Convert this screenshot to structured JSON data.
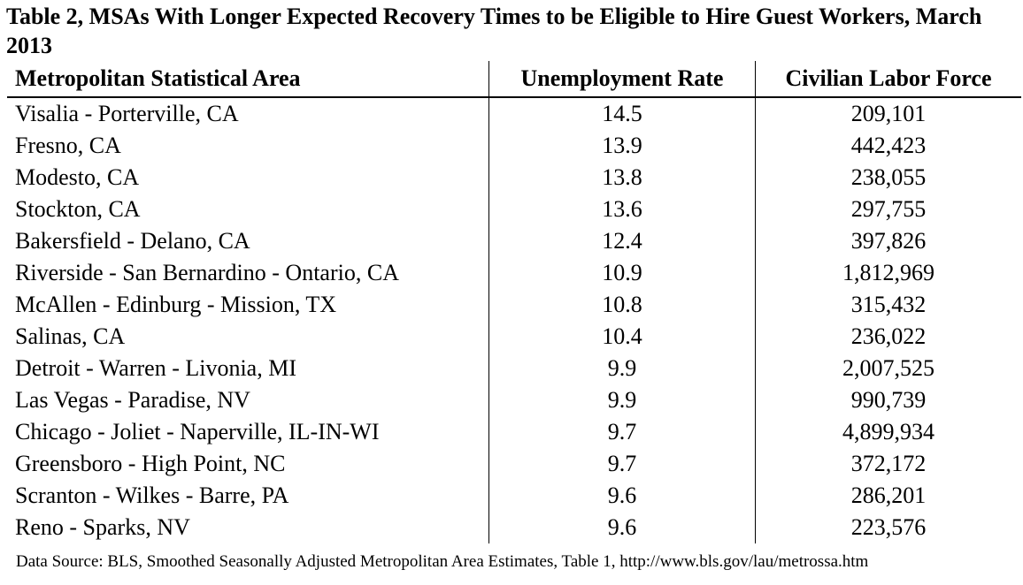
{
  "title": "Table 2, MSAs With Longer Expected Recovery Times to be Eligible to Hire Guest Workers, March 2013",
  "headers": {
    "area": "Metropolitan Statistical Area",
    "rate": "Unemployment Rate",
    "labor": "Civilian Labor Force"
  },
  "rows": [
    {
      "area": "Visalia - Porterville, CA",
      "rate": "14.5",
      "labor": "209,101"
    },
    {
      "area": "Fresno, CA",
      "rate": "13.9",
      "labor": "442,423"
    },
    {
      "area": "Modesto, CA",
      "rate": "13.8",
      "labor": "238,055"
    },
    {
      "area": "Stockton, CA",
      "rate": "13.6",
      "labor": "297,755"
    },
    {
      "area": "Bakersfield - Delano, CA",
      "rate": "12.4",
      "labor": "397,826"
    },
    {
      "area": "Riverside - San Bernardino - Ontario, CA",
      "rate": "10.9",
      "labor": "1,812,969"
    },
    {
      "area": "McAllen - Edinburg - Mission, TX",
      "rate": "10.8",
      "labor": "315,432"
    },
    {
      "area": "Salinas, CA",
      "rate": "10.4",
      "labor": "236,022"
    },
    {
      "area": "Detroit - Warren - Livonia, MI",
      "rate": "9.9",
      "labor": "2,007,525"
    },
    {
      "area": "Las Vegas - Paradise, NV",
      "rate": "9.9",
      "labor": "990,739"
    },
    {
      "area": "Chicago - Joliet - Naperville, IL-IN-WI",
      "rate": "9.7",
      "labor": "4,899,934"
    },
    {
      "area": "Greensboro - High Point, NC",
      "rate": "9.7",
      "labor": "372,172"
    },
    {
      "area": "Scranton - Wilkes - Barre, PA",
      "rate": "9.6",
      "labor": "286,201"
    },
    {
      "area": "Reno - Sparks, NV",
      "rate": "9.6",
      "labor": "223,576"
    }
  ],
  "source": "Data Source: BLS, Smoothed Seasonally Adjusted Metropolitan Area Estimates, Table 1, http://www.bls.gov/lau/metrossa.htm"
}
